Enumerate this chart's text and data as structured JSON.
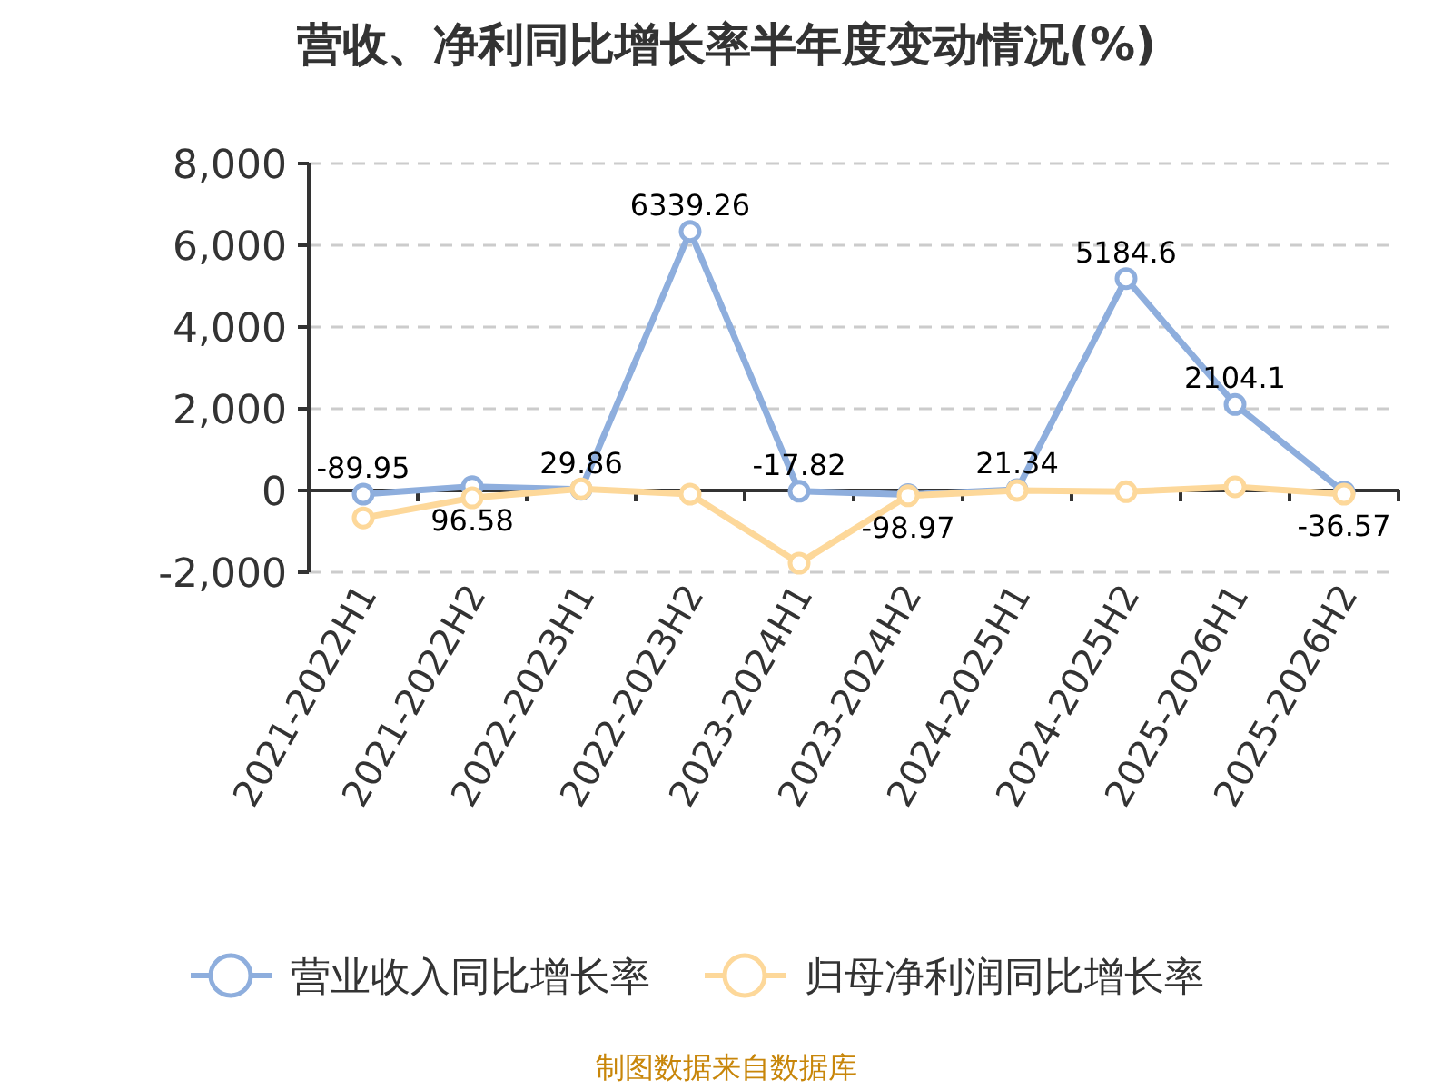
{
  "chart_data": {
    "type": "line",
    "title": "营收、净利同比增长率半年度变动情况(%)",
    "categories": [
      "2021-2022H1",
      "2021-2022H2",
      "2022-2023H1",
      "2022-2023H2",
      "2023-2024H1",
      "2023-2024H2",
      "2024-2025H1",
      "2024-2025H2",
      "2025-2026H1",
      "2025-2026H2"
    ],
    "series": [
      {
        "name": "营业收入同比增长率",
        "color": "#8eaedd",
        "values": [
          -89.95,
          96.58,
          29.86,
          6339.26,
          -17.82,
          -98.97,
          21.34,
          5184.6,
          2104.1,
          -36.57
        ],
        "data_labels": true
      },
      {
        "name": "归母净利润同比增长率",
        "color": "#fdd89a",
        "values": [
          -670,
          -180,
          40,
          -90,
          -1780,
          -130,
          0,
          -30,
          90,
          -90
        ]
      }
    ],
    "ylim": [
      -2000,
      8000
    ],
    "yticks": [
      {
        "value": -2000,
        "label": "-2,000"
      },
      0,
      {
        "value": 2000,
        "label": "2,000"
      },
      {
        "value": 4000,
        "label": "4,000"
      },
      {
        "value": 6000,
        "label": "6,000"
      },
      {
        "value": 8000,
        "label": "8,000"
      }
    ],
    "grid": "y",
    "legend": "bottom",
    "marker": "circle",
    "annotations": [
      "制图数据来自数据库"
    ]
  }
}
